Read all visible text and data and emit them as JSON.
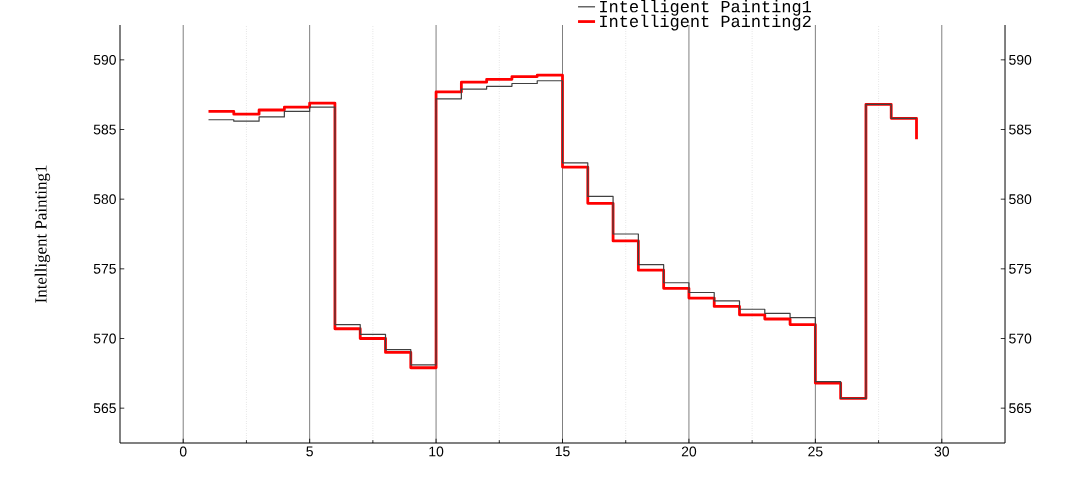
{
  "chart_data": {
    "type": "step",
    "ylabel": "Intelligent Painting1",
    "x": [
      1,
      2,
      3,
      4,
      5,
      6,
      7,
      8,
      9,
      10,
      11,
      12,
      13,
      14,
      15,
      16,
      17,
      18,
      19,
      20,
      21,
      22,
      23,
      24,
      25,
      26,
      27,
      28,
      29
    ],
    "series": [
      {
        "name": "Intelligent Painting1",
        "color": "#404040",
        "values": [
          585.7,
          585.6,
          585.9,
          586.3,
          586.6,
          571.0,
          570.3,
          569.2,
          568.1,
          587.2,
          587.9,
          588.1,
          588.3,
          588.5,
          582.6,
          580.2,
          577.5,
          575.3,
          574.0,
          573.3,
          572.7,
          572.1,
          571.8,
          571.5,
          566.9,
          565.7,
          586.8,
          585.8,
          585.8
        ]
      },
      {
        "name": "Intelligent Painting2",
        "color": "#ff0000",
        "values": [
          586.3,
          586.1,
          586.4,
          586.6,
          586.9,
          570.7,
          570.0,
          569.0,
          567.9,
          587.7,
          588.4,
          588.6,
          588.8,
          588.9,
          582.3,
          579.7,
          577.0,
          574.9,
          573.6,
          572.9,
          572.3,
          571.7,
          571.4,
          571.0,
          566.8,
          565.7,
          586.8,
          585.8,
          584.3
        ]
      }
    ],
    "xlim": [
      -2.5,
      32.5
    ],
    "xticks": [
      0,
      {
        "value": 2.5,
        "label": null
      },
      5,
      {
        "value": 7.5,
        "label": null
      },
      10,
      {
        "value": 12.5,
        "label": null
      },
      15,
      {
        "value": 17.5,
        "label": null
      },
      20,
      {
        "value": 22.5,
        "label": null
      },
      25,
      {
        "value": 27.5,
        "label": null
      },
      30
    ],
    "ylim": [
      562.5,
      592.5
    ],
    "yticks": [
      565,
      570,
      575,
      580,
      585,
      590
    ],
    "y2lim": [
      562.5,
      592.5
    ],
    "y2ticks": [
      565,
      570,
      575,
      580,
      585,
      590
    ],
    "grid": "x",
    "legend": "top",
    "marker": "none",
    "line_style": "solid"
  }
}
